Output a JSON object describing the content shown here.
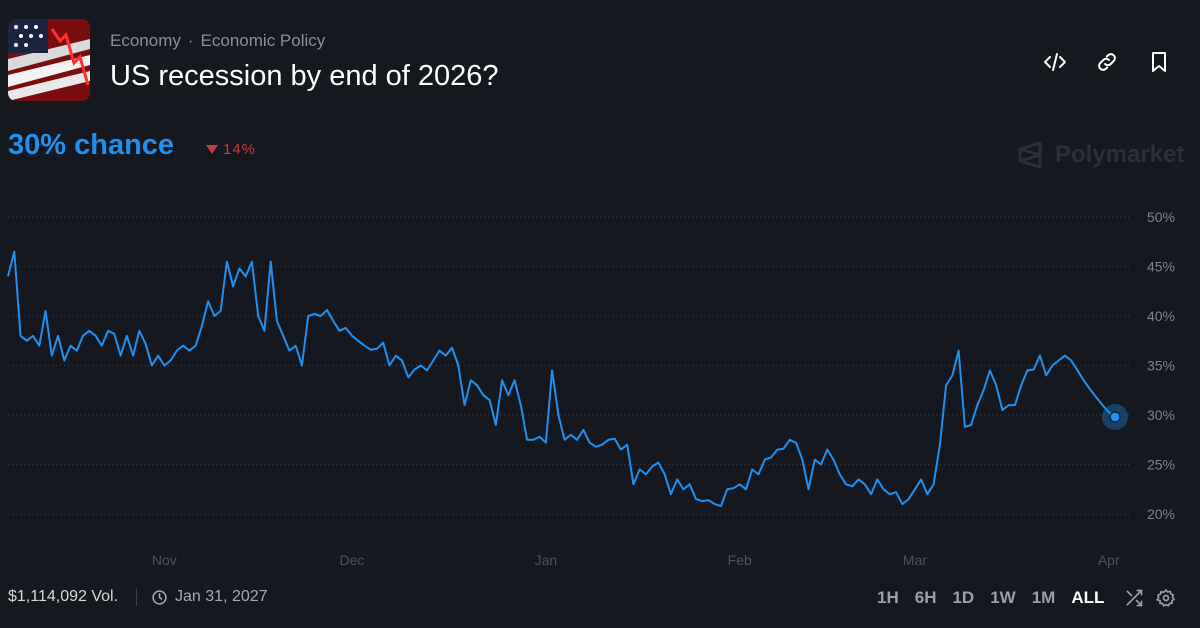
{
  "header": {
    "category": "Economy",
    "subcategory": "Economic Policy",
    "separator": "·",
    "title": "US recession by end of 2026?"
  },
  "actions": [
    {
      "name": "embed-icon"
    },
    {
      "name": "link-icon"
    },
    {
      "name": "bookmark-icon"
    }
  ],
  "odds": {
    "chance": "30% chance",
    "delta": "14%",
    "delta_direction": "down"
  },
  "brand": {
    "name": "Polymarket"
  },
  "footer": {
    "volume": "$1,114,092 Vol.",
    "end_date": "Jan 31, 2027",
    "ranges": [
      "1H",
      "6H",
      "1D",
      "1W",
      "1M",
      "ALL"
    ],
    "active_range": "ALL"
  },
  "colors": {
    "line": "#1e90ef",
    "down": "#c43c3c",
    "background": "#15181e"
  },
  "chart_data": {
    "type": "line",
    "ylim": [
      20,
      50
    ],
    "y_ticks": [
      "20%",
      "25%",
      "30%",
      "35%",
      "40%",
      "45%",
      "50%"
    ],
    "x_ticks": [
      {
        "label": "Nov",
        "x": "2025-11-01"
      },
      {
        "label": "Dec",
        "x": "2025-12-01"
      },
      {
        "label": "Jan",
        "x": "2026-01-01"
      },
      {
        "label": "Feb",
        "x": "2026-02-01"
      },
      {
        "label": "Mar",
        "x": "2026-03-01"
      },
      {
        "label": "Apr",
        "x": "2026-04-01"
      }
    ],
    "grid": true,
    "series": [
      {
        "points": [
          [
            "2025-10-07",
            44
          ],
          [
            "2025-10-08",
            46.5
          ],
          [
            "2025-10-09",
            38
          ],
          [
            "2025-10-10",
            37.5
          ],
          [
            "2025-10-11",
            38
          ],
          [
            "2025-10-12",
            37
          ],
          [
            "2025-10-13",
            40.5
          ],
          [
            "2025-10-14",
            36
          ],
          [
            "2025-10-15",
            38
          ],
          [
            "2025-10-16",
            35.5
          ],
          [
            "2025-10-17",
            37
          ],
          [
            "2025-10-18",
            36.5
          ],
          [
            "2025-10-19",
            38
          ],
          [
            "2025-10-20",
            38.5
          ],
          [
            "2025-10-21",
            38
          ],
          [
            "2025-10-22",
            37
          ],
          [
            "2025-10-23",
            38.5
          ],
          [
            "2025-10-24",
            38.2
          ],
          [
            "2025-10-25",
            36
          ],
          [
            "2025-10-26",
            38
          ],
          [
            "2025-10-27",
            36
          ],
          [
            "2025-10-28",
            38.5
          ],
          [
            "2025-10-29",
            37.2
          ],
          [
            "2025-10-30",
            35
          ],
          [
            "2025-10-31",
            36
          ],
          [
            "2025-11-01",
            35
          ],
          [
            "2025-11-02",
            35.5
          ],
          [
            "2025-11-03",
            36.5
          ],
          [
            "2025-11-04",
            37
          ],
          [
            "2025-11-05",
            36.5
          ],
          [
            "2025-11-06",
            37
          ],
          [
            "2025-11-07",
            39
          ],
          [
            "2025-11-08",
            41.5
          ],
          [
            "2025-11-09",
            40
          ],
          [
            "2025-11-10",
            40.5
          ],
          [
            "2025-11-11",
            45.5
          ],
          [
            "2025-11-12",
            43
          ],
          [
            "2025-11-13",
            44.8
          ],
          [
            "2025-11-14",
            44
          ],
          [
            "2025-11-15",
            45.5
          ],
          [
            "2025-11-16",
            40
          ],
          [
            "2025-11-17",
            38.5
          ],
          [
            "2025-11-18",
            45.5
          ],
          [
            "2025-11-19",
            39.5
          ],
          [
            "2025-11-20",
            38
          ],
          [
            "2025-11-21",
            36.5
          ],
          [
            "2025-11-22",
            37
          ],
          [
            "2025-11-23",
            35
          ],
          [
            "2025-11-24",
            40
          ],
          [
            "2025-11-25",
            40.2
          ],
          [
            "2025-11-26",
            40
          ],
          [
            "2025-11-27",
            40.6
          ],
          [
            "2025-11-28",
            39.5
          ],
          [
            "2025-11-29",
            38.5
          ],
          [
            "2025-11-30",
            38.8
          ],
          [
            "2025-12-01",
            38
          ],
          [
            "2025-12-02",
            37.5
          ],
          [
            "2025-12-03",
            37
          ],
          [
            "2025-12-04",
            36.6
          ],
          [
            "2025-12-05",
            36.7
          ],
          [
            "2025-12-06",
            37.3
          ],
          [
            "2025-12-07",
            35
          ],
          [
            "2025-12-08",
            36
          ],
          [
            "2025-12-09",
            35.5
          ],
          [
            "2025-12-10",
            33.8
          ],
          [
            "2025-12-11",
            34.6
          ],
          [
            "2025-12-12",
            35
          ],
          [
            "2025-12-13",
            34.5
          ],
          [
            "2025-12-14",
            35.5
          ],
          [
            "2025-12-15",
            36.5
          ],
          [
            "2025-12-16",
            36
          ],
          [
            "2025-12-17",
            36.8
          ],
          [
            "2025-12-18",
            35
          ],
          [
            "2025-12-19",
            31
          ],
          [
            "2025-12-20",
            33.5
          ],
          [
            "2025-12-21",
            33
          ],
          [
            "2025-12-22",
            32
          ],
          [
            "2025-12-23",
            31.5
          ],
          [
            "2025-12-24",
            29
          ],
          [
            "2025-12-25",
            33.5
          ],
          [
            "2025-12-26",
            32
          ],
          [
            "2025-12-27",
            33.5
          ],
          [
            "2025-12-28",
            31
          ],
          [
            "2025-12-29",
            27.5
          ],
          [
            "2025-12-30",
            27.5
          ],
          [
            "2025-12-31",
            27.8
          ],
          [
            "2026-01-01",
            27.2
          ],
          [
            "2026-01-02",
            34.5
          ],
          [
            "2026-01-03",
            30
          ],
          [
            "2026-01-04",
            27.5
          ],
          [
            "2026-01-05",
            28
          ],
          [
            "2026-01-06",
            27.5
          ],
          [
            "2026-01-07",
            28.5
          ],
          [
            "2026-01-08",
            27.2
          ],
          [
            "2026-01-09",
            26.8
          ],
          [
            "2026-01-10",
            27
          ],
          [
            "2026-01-11",
            27.5
          ],
          [
            "2026-01-12",
            27.6
          ],
          [
            "2026-01-13",
            26.5
          ],
          [
            "2026-01-14",
            27
          ],
          [
            "2026-01-15",
            23
          ],
          [
            "2026-01-16",
            24.5
          ],
          [
            "2026-01-17",
            24
          ],
          [
            "2026-01-18",
            24.8
          ],
          [
            "2026-01-19",
            25.2
          ],
          [
            "2026-01-20",
            24
          ],
          [
            "2026-01-21",
            22
          ],
          [
            "2026-01-22",
            23.5
          ],
          [
            "2026-01-23",
            22.5
          ],
          [
            "2026-01-24",
            23
          ],
          [
            "2026-01-25",
            21.5
          ],
          [
            "2026-01-26",
            21.3
          ],
          [
            "2026-01-27",
            21.4
          ],
          [
            "2026-01-28",
            21
          ],
          [
            "2026-01-29",
            20.8
          ],
          [
            "2026-01-30",
            22.5
          ],
          [
            "2026-01-31",
            22.6
          ],
          [
            "2026-02-01",
            23
          ],
          [
            "2026-02-02",
            22.5
          ],
          [
            "2026-02-03",
            24.5
          ],
          [
            "2026-02-04",
            24
          ],
          [
            "2026-02-05",
            25.5
          ],
          [
            "2026-02-06",
            25.7
          ],
          [
            "2026-02-07",
            26.5
          ],
          [
            "2026-02-08",
            26.6
          ],
          [
            "2026-02-09",
            27.5
          ],
          [
            "2026-02-10",
            27.2
          ],
          [
            "2026-02-11",
            25.5
          ],
          [
            "2026-02-12",
            22.5
          ],
          [
            "2026-02-13",
            25.5
          ],
          [
            "2026-02-14",
            25
          ],
          [
            "2026-02-15",
            26.5
          ],
          [
            "2026-02-16",
            25.5
          ],
          [
            "2026-02-17",
            24
          ],
          [
            "2026-02-18",
            23
          ],
          [
            "2026-02-19",
            22.8
          ],
          [
            "2026-02-20",
            23.5
          ],
          [
            "2026-02-21",
            23
          ],
          [
            "2026-02-22",
            22
          ],
          [
            "2026-02-23",
            23.5
          ],
          [
            "2026-02-24",
            22.5
          ],
          [
            "2026-02-25",
            22
          ],
          [
            "2026-02-26",
            22.2
          ],
          [
            "2026-02-27",
            21
          ],
          [
            "2026-02-28",
            21.5
          ],
          [
            "2026-03-01",
            22.5
          ],
          [
            "2026-03-02",
            23.5
          ],
          [
            "2026-03-03",
            22
          ],
          [
            "2026-03-04",
            23
          ],
          [
            "2026-03-05",
            27
          ],
          [
            "2026-03-06",
            33
          ],
          [
            "2026-03-07",
            34
          ],
          [
            "2026-03-08",
            36.5
          ],
          [
            "2026-03-09",
            28.8
          ],
          [
            "2026-03-10",
            29
          ],
          [
            "2026-03-11",
            31
          ],
          [
            "2026-03-12",
            32.5
          ],
          [
            "2026-03-13",
            34.5
          ],
          [
            "2026-03-14",
            33
          ],
          [
            "2026-03-15",
            30.5
          ],
          [
            "2026-03-16",
            31
          ],
          [
            "2026-03-17",
            31
          ],
          [
            "2026-03-18",
            33
          ],
          [
            "2026-03-19",
            34.5
          ],
          [
            "2026-03-20",
            34.6
          ],
          [
            "2026-03-21",
            36
          ],
          [
            "2026-03-22",
            34
          ],
          [
            "2026-03-23",
            35
          ],
          [
            "2026-03-24",
            35.5
          ],
          [
            "2026-03-25",
            36
          ],
          [
            "2026-03-26",
            35.5
          ],
          [
            "2026-03-27",
            34.5
          ],
          [
            "2026-03-28",
            33.5
          ],
          [
            "2026-03-29",
            32.6
          ],
          [
            "2026-03-30",
            31.8
          ],
          [
            "2026-03-31",
            31
          ],
          [
            "2026-04-01",
            30.3
          ],
          [
            "2026-04-02",
            29.8
          ]
        ]
      }
    ]
  }
}
